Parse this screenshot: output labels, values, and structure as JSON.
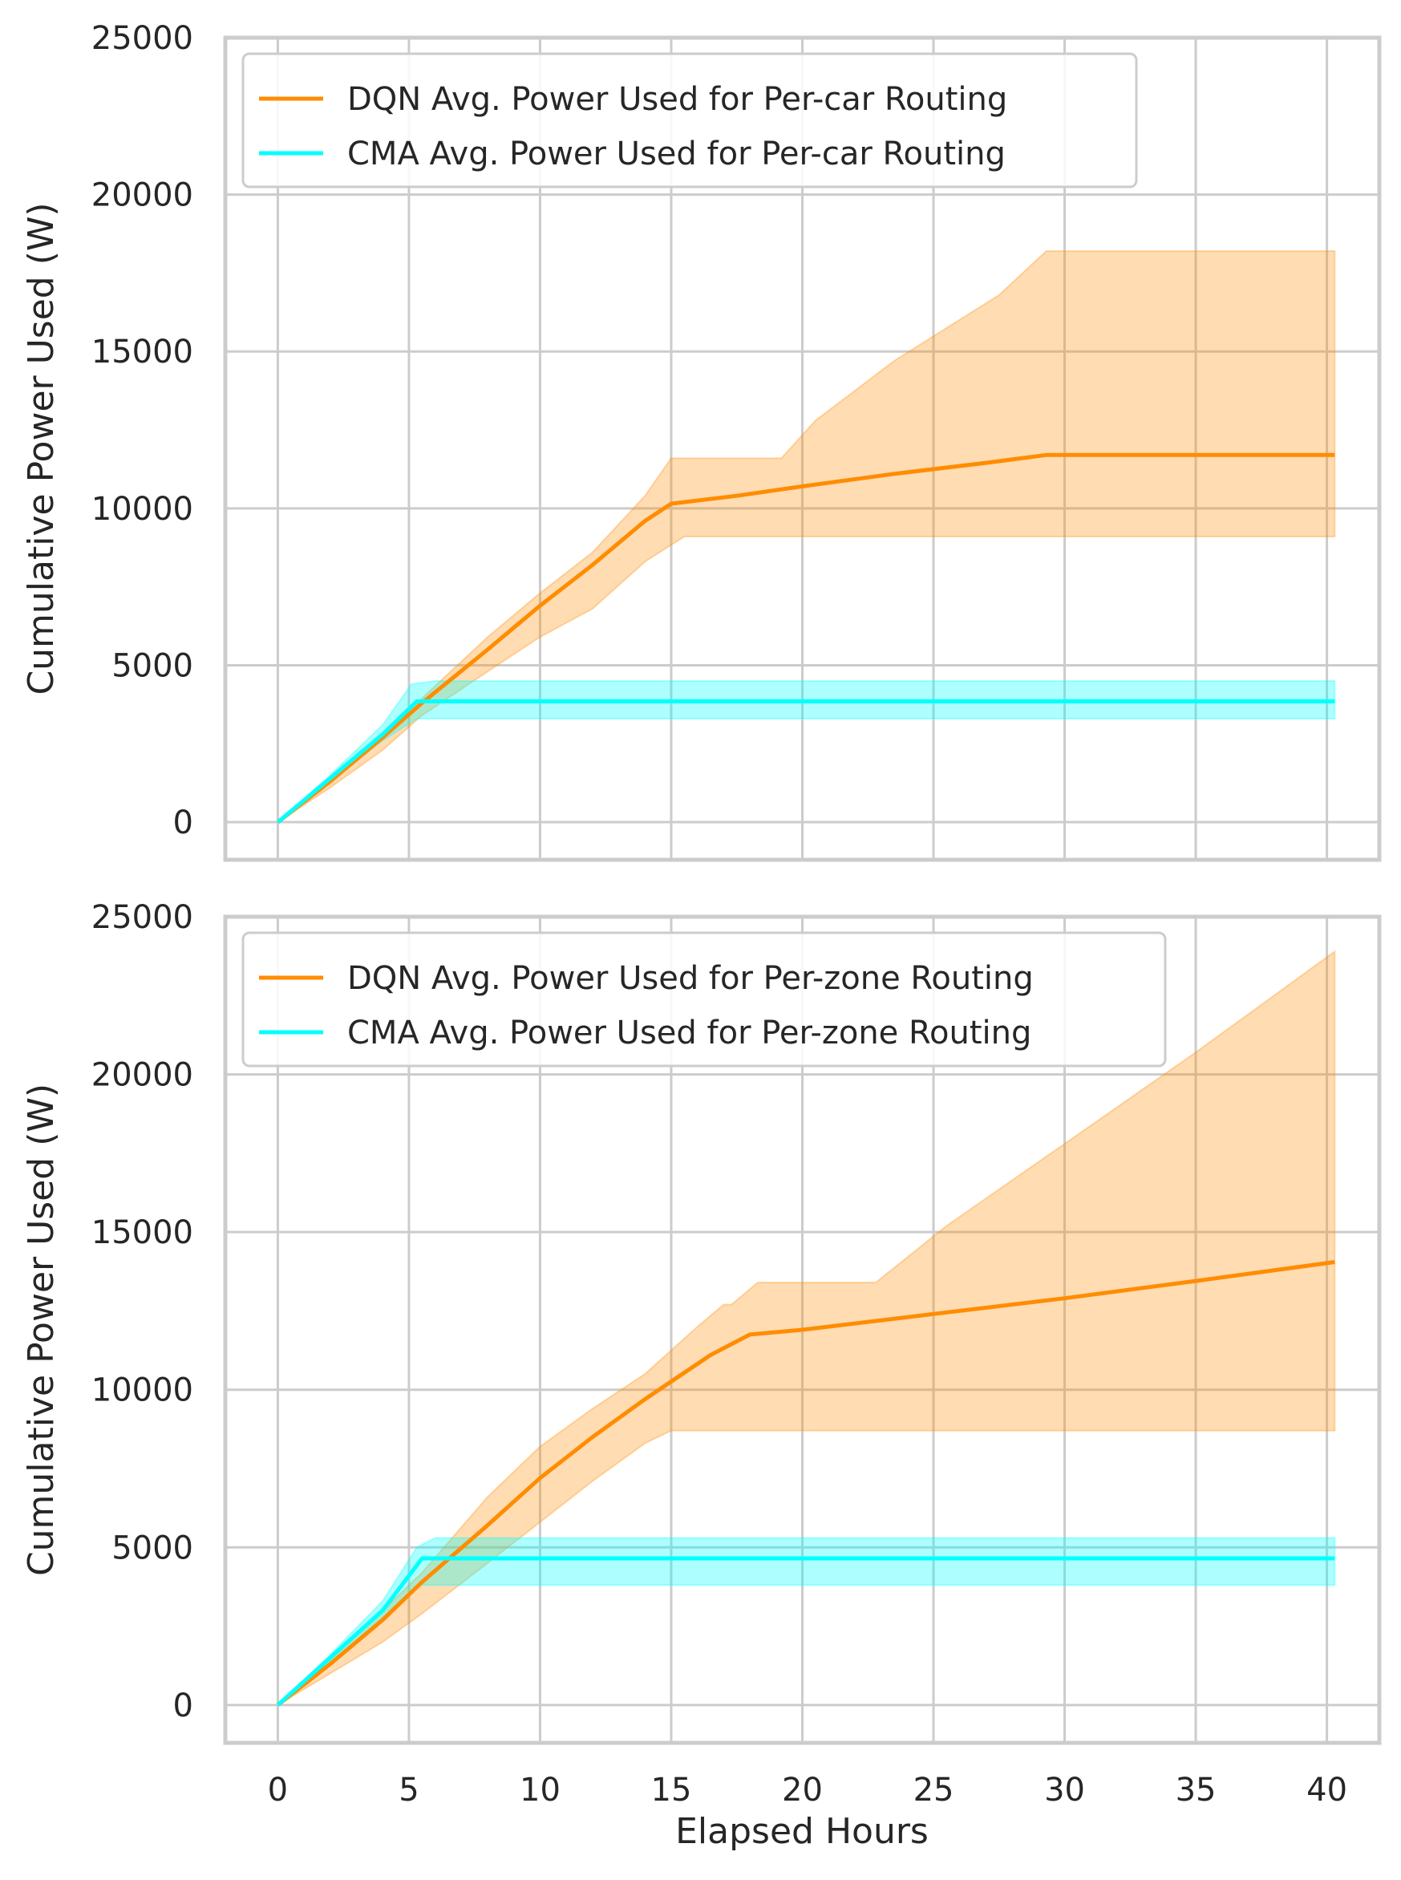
{
  "figure": {
    "xlabel": "Elapsed Hours",
    "colors": {
      "dqn": "#ff8c00",
      "cma": "#00ffff",
      "grid": "#cccccc",
      "text": "#262626"
    }
  },
  "chart_data": [
    {
      "type": "line",
      "title": "",
      "xlabel": "",
      "ylabel": "Cumulative Power Used (W)",
      "xlim": [
        -2,
        42
      ],
      "ylim": [
        -1200,
        25000
      ],
      "xticks": [
        0,
        5,
        10,
        15,
        20,
        25,
        30,
        35,
        40
      ],
      "yticks": [
        0,
        5000,
        10000,
        15000,
        20000,
        25000
      ],
      "xtick_labels_visible": false,
      "grid": true,
      "legend": "top-left",
      "series": [
        {
          "name": "DQN Avg. Power Used for Per-car Routing",
          "color": "#ff8c00",
          "x": [
            0,
            2,
            4,
            5.5,
            8,
            10,
            12,
            14,
            15,
            17.5,
            20,
            23.5,
            27,
            29.3,
            40.3
          ],
          "y": [
            0,
            1300,
            2700,
            3800,
            5500,
            6900,
            8200,
            9600,
            10150,
            10400,
            10700,
            11100,
            11450,
            11700,
            11700
          ],
          "band_upper": [
            0,
            1400,
            2800,
            3950,
            5900,
            7300,
            8600,
            10400,
            11600,
            11600,
            11600,
            12800,
            14700,
            16800,
            18200,
            18200
          ],
          "band_upper_x": [
            0,
            2,
            4,
            5.5,
            8,
            10,
            12,
            14,
            15,
            17,
            19.2,
            20.5,
            23.5,
            27.5,
            29.3,
            40.3
          ],
          "band_lower": [
            0,
            1100,
            2300,
            3400,
            4800,
            5900,
            6800,
            8300,
            9100,
            9100,
            9100
          ],
          "band_lower_x": [
            0,
            2,
            4,
            5.5,
            8,
            10,
            12,
            14,
            15.5,
            20,
            40.3
          ]
        },
        {
          "name": "CMA Avg. Power Used for Per-car Routing",
          "color": "#00ffff",
          "x": [
            0,
            2,
            4,
            5.3,
            40.3
          ],
          "y": [
            0,
            1400,
            2800,
            3850,
            3850
          ],
          "band_upper": [
            0,
            1500,
            3100,
            4400,
            4500,
            4500
          ],
          "band_upper_x": [
            0,
            2,
            4,
            5.1,
            6,
            40.3
          ],
          "band_lower": [
            0,
            1300,
            2600,
            3300,
            3300
          ],
          "band_lower_x": [
            0,
            2,
            4,
            5.3,
            40.3
          ]
        }
      ]
    },
    {
      "type": "line",
      "title": "",
      "xlabel": "Elapsed Hours",
      "ylabel": "Cumulative Power Used (W)",
      "xlim": [
        -2,
        42
      ],
      "ylim": [
        -1200,
        25000
      ],
      "xticks": [
        0,
        5,
        10,
        15,
        20,
        25,
        30,
        35,
        40
      ],
      "yticks": [
        0,
        5000,
        10000,
        15000,
        20000,
        25000
      ],
      "xtick_labels_visible": true,
      "grid": true,
      "legend": "top-left",
      "series": [
        {
          "name": "DQN Avg. Power Used for Per-zone Routing",
          "color": "#ff8c00",
          "x": [
            0,
            2,
            4,
            5.5,
            8,
            10,
            12,
            14,
            16.5,
            18,
            20,
            25,
            30,
            35,
            40.3
          ],
          "y": [
            0,
            1300,
            2700,
            3900,
            5700,
            7200,
            8500,
            9700,
            11100,
            11750,
            11900,
            12400,
            12900,
            13450,
            14050
          ],
          "band_upper": [
            0,
            1500,
            3000,
            4200,
            6600,
            8200,
            9400,
            10500,
            12000,
            12700,
            12700,
            13400,
            13400,
            13400,
            15200,
            17800,
            20700,
            23900
          ],
          "band_upper_x": [
            0,
            2,
            4,
            5.5,
            8,
            10,
            12,
            14,
            16,
            17,
            17.3,
            18.3,
            20,
            22.8,
            25.5,
            30,
            35,
            40.3
          ],
          "band_lower": [
            0,
            1000,
            2000,
            2900,
            4500,
            5800,
            7100,
            8300,
            8700,
            8700
          ],
          "band_lower_x": [
            0,
            2,
            4,
            5.5,
            8,
            10,
            12,
            14,
            15,
            40.3
          ]
        },
        {
          "name": "CMA Avg. Power Used for Per-zone Routing",
          "color": "#00ffff",
          "x": [
            0,
            2,
            4,
            5.5,
            40.3
          ],
          "y": [
            0,
            1500,
            3000,
            4650,
            4650
          ],
          "band_upper": [
            0,
            1600,
            3300,
            5000,
            5300,
            5300
          ],
          "band_upper_x": [
            0,
            2,
            4,
            5.3,
            6,
            40.3
          ],
          "band_lower": [
            0,
            1300,
            2700,
            3800,
            3800
          ],
          "band_lower_x": [
            0,
            2,
            4,
            5.3,
            40.3
          ]
        }
      ]
    }
  ]
}
